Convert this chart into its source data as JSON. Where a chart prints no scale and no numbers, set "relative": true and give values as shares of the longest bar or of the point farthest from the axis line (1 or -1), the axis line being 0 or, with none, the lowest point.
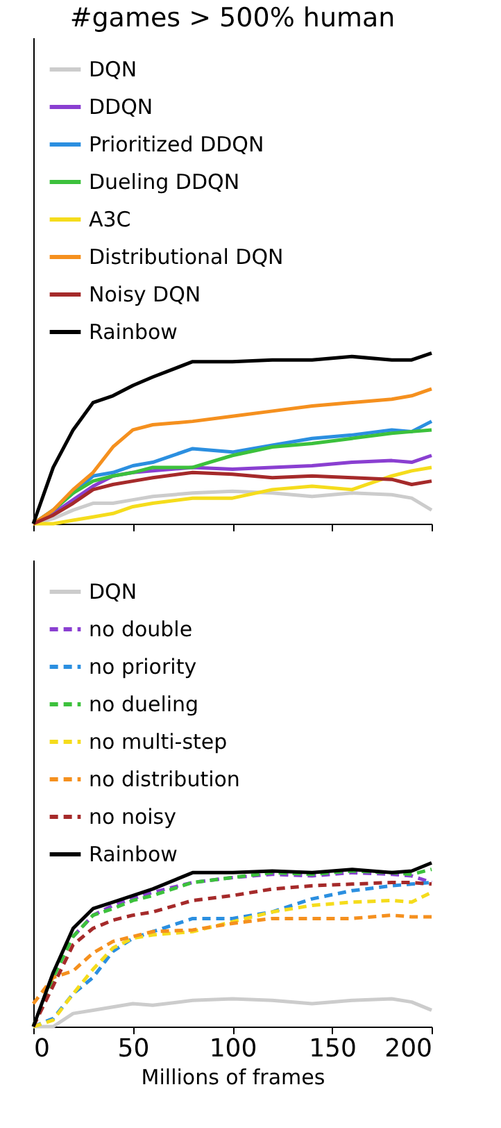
{
  "chart_data": [
    {
      "type": "line",
      "title": "#games > 500% human",
      "relative": true,
      "xlim": [
        0,
        200
      ],
      "xticks": [
        0,
        50,
        100,
        150,
        200
      ],
      "tick_labels": false,
      "legend": "top left",
      "x": [
        0,
        10,
        20,
        30,
        40,
        50,
        60,
        80,
        100,
        120,
        140,
        160,
        180,
        190,
        200
      ],
      "series": [
        {
          "name": "DQN",
          "color": "#cccccc",
          "line_style": "solid",
          "values": [
            0,
            0.03,
            0.08,
            0.12,
            0.12,
            0.14,
            0.16,
            0.18,
            0.19,
            0.18,
            0.16,
            0.18,
            0.17,
            0.15,
            0.08
          ]
        },
        {
          "name": "DDQN",
          "color": "#8a3fd1",
          "line_style": "solid",
          "values": [
            0,
            0.06,
            0.14,
            0.22,
            0.28,
            0.3,
            0.31,
            0.33,
            0.32,
            0.33,
            0.34,
            0.36,
            0.37,
            0.36,
            0.4
          ]
        },
        {
          "name": "Prioritized DDQN",
          "color": "#2b8fe0",
          "line_style": "solid",
          "values": [
            0,
            0.08,
            0.18,
            0.28,
            0.3,
            0.34,
            0.36,
            0.44,
            0.42,
            0.46,
            0.5,
            0.52,
            0.55,
            0.54,
            0.6
          ]
        },
        {
          "name": "Dueling DDQN",
          "color": "#3cc13c",
          "line_style": "solid",
          "values": [
            0,
            0.08,
            0.18,
            0.25,
            0.28,
            0.3,
            0.33,
            0.33,
            0.4,
            0.45,
            0.47,
            0.5,
            0.53,
            0.54,
            0.55
          ]
        },
        {
          "name": "A3C",
          "color": "#f5dc1c",
          "line_style": "solid",
          "values": [
            0,
            0,
            0.02,
            0.04,
            0.06,
            0.1,
            0.12,
            0.15,
            0.15,
            0.2,
            0.22,
            0.2,
            0.28,
            0.31,
            0.33
          ]
        },
        {
          "name": "Distributional DQN",
          "color": "#f5901e",
          "line_style": "solid",
          "values": [
            0,
            0.08,
            0.2,
            0.3,
            0.45,
            0.55,
            0.58,
            0.6,
            0.63,
            0.66,
            0.69,
            0.71,
            0.73,
            0.75,
            0.79
          ]
        },
        {
          "name": "Noisy DQN",
          "color": "#a52a2a",
          "line_style": "solid",
          "values": [
            0,
            0.05,
            0.12,
            0.2,
            0.23,
            0.25,
            0.27,
            0.3,
            0.29,
            0.27,
            0.28,
            0.27,
            0.26,
            0.23,
            0.25
          ]
        },
        {
          "name": "Rainbow",
          "color": "#000000",
          "line_style": "solid",
          "values": [
            0,
            0.33,
            0.55,
            0.71,
            0.75,
            0.81,
            0.86,
            0.95,
            0.95,
            0.96,
            0.96,
            0.98,
            0.96,
            0.96,
            1
          ]
        }
      ]
    },
    {
      "type": "line",
      "xlabel": "Millions of frames",
      "relative": true,
      "xlim": [
        0,
        200
      ],
      "xticks": [
        0,
        50,
        100,
        150,
        200
      ],
      "tick_labels": "x",
      "legend": "top left",
      "x": [
        0,
        10,
        20,
        30,
        40,
        50,
        60,
        80,
        100,
        120,
        140,
        160,
        180,
        190,
        200
      ],
      "series": [
        {
          "name": "DQN",
          "color": "#cccccc",
          "line_style": "solid",
          "values": [
            0,
            0,
            0.08,
            0.1,
            0.12,
            0.14,
            0.13,
            0.16,
            0.17,
            0.16,
            0.14,
            0.16,
            0.17,
            0.15,
            0.1
          ]
        },
        {
          "name": "no double",
          "color": "#8a3fd1",
          "line_style": "dashed",
          "values": [
            null,
            null,
            0.55,
            0.68,
            0.74,
            0.78,
            0.82,
            0.88,
            0.91,
            0.93,
            0.92,
            0.94,
            0.93,
            0.92,
            0.88
          ]
        },
        {
          "name": "no priority",
          "color": "#2b8fe0",
          "line_style": "dashed",
          "values": [
            0,
            0.05,
            0.2,
            0.3,
            0.46,
            0.54,
            0.58,
            0.66,
            0.66,
            0.7,
            0.78,
            0.83,
            0.86,
            0.87,
            0.88
          ]
        },
        {
          "name": "no dueling",
          "color": "#3cc13c",
          "line_style": "dashed",
          "values": [
            0,
            0.3,
            0.55,
            0.68,
            0.72,
            0.77,
            0.8,
            0.88,
            0.91,
            0.94,
            0.93,
            0.95,
            0.94,
            0.93,
            0.96
          ]
        },
        {
          "name": "no multi-step",
          "color": "#f5dc1c",
          "line_style": "dashed",
          "values": [
            0,
            0.04,
            0.2,
            0.35,
            0.48,
            0.54,
            0.56,
            0.58,
            0.64,
            0.7,
            0.74,
            0.76,
            0.77,
            0.76,
            0.82
          ]
        },
        {
          "name": "no distribution",
          "color": "#f5901e",
          "line_style": "dashed",
          "values": [
            0.14,
            0.3,
            0.34,
            0.45,
            0.52,
            0.55,
            0.58,
            0.59,
            0.63,
            0.66,
            0.66,
            0.66,
            0.68,
            0.67,
            0.67
          ]
        },
        {
          "name": "no noisy",
          "color": "#a52a2a",
          "line_style": "dashed",
          "values": [
            0,
            0.25,
            0.5,
            0.6,
            0.65,
            0.68,
            0.7,
            0.77,
            0.8,
            0.84,
            0.86,
            0.87,
            0.88,
            0.88,
            0.87
          ]
        },
        {
          "name": "Rainbow",
          "color": "#000000",
          "line_style": "solid",
          "values": [
            0,
            0.33,
            0.6,
            0.72,
            0.76,
            0.8,
            0.84,
            0.94,
            0.94,
            0.95,
            0.94,
            0.96,
            0.94,
            0.95,
            1
          ]
        }
      ]
    }
  ]
}
